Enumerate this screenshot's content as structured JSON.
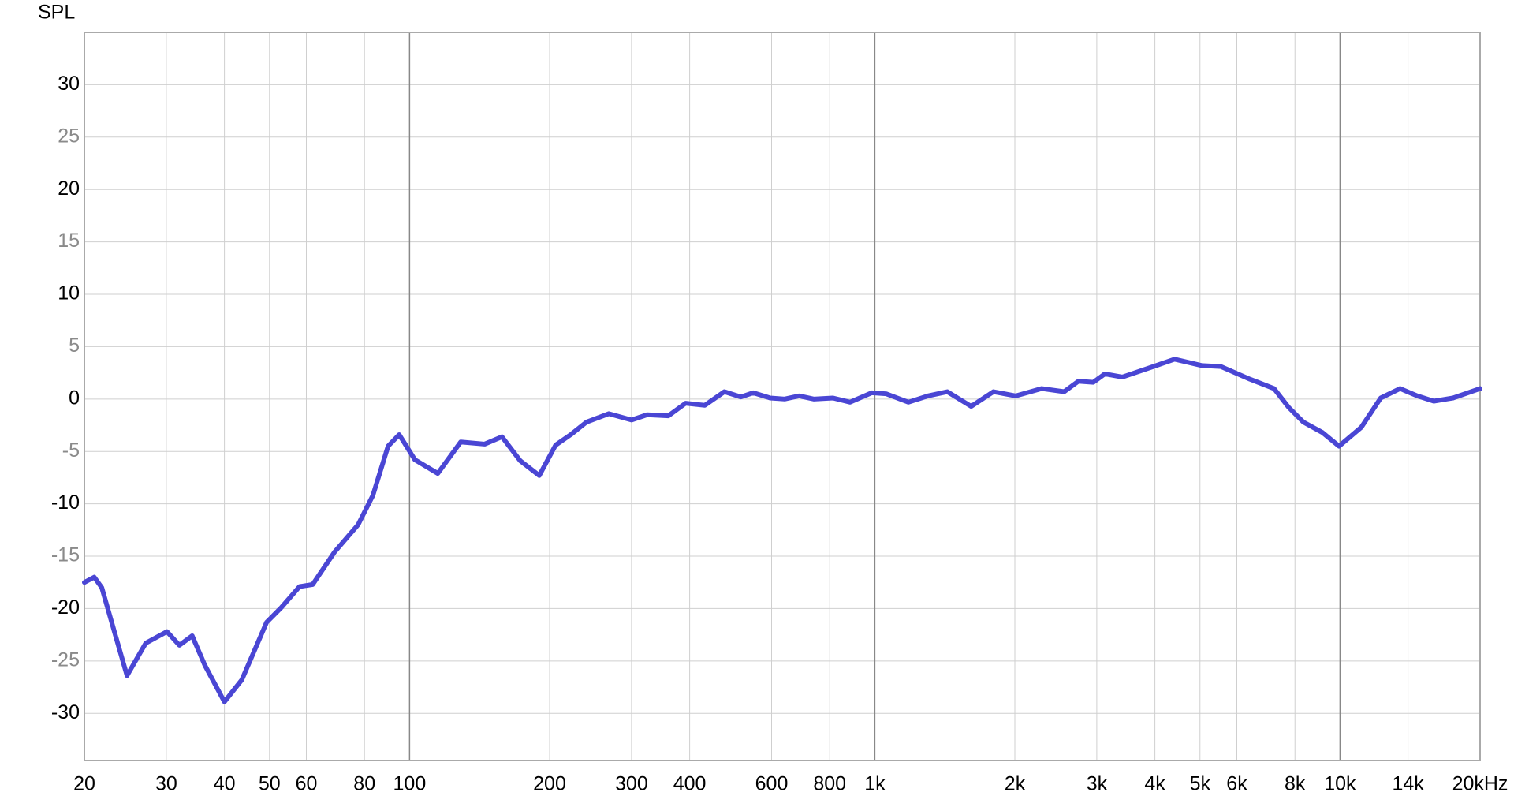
{
  "chart_data": {
    "type": "line",
    "y_label": "SPL",
    "xscale": "log",
    "xlim": [
      20,
      20000
    ],
    "ylim": [
      -34.5,
      35
    ],
    "xticks": [
      20,
      30,
      40,
      50,
      60,
      80,
      100,
      200,
      300,
      400,
      600,
      800,
      {
        "value": 1000,
        "label": "1k"
      },
      {
        "value": 2000,
        "label": "2k"
      },
      {
        "value": 3000,
        "label": "3k"
      },
      {
        "value": 4000,
        "label": "4k"
      },
      {
        "value": 5000,
        "label": "5k"
      },
      {
        "value": 6000,
        "label": "6k"
      },
      {
        "value": 8000,
        "label": "8k"
      },
      {
        "value": 10000,
        "label": "10k"
      },
      {
        "value": 14000,
        "label": "14k"
      },
      {
        "value": 20000,
        "label": "20kHz"
      }
    ],
    "yticks": [
      30,
      25,
      20,
      15,
      10,
      5,
      0,
      -5,
      -10,
      -15,
      -20,
      -25,
      -30
    ],
    "grid": true,
    "color": "#4a46d4",
    "x": [
      20,
      21,
      21.8,
      23.2,
      24.7,
      27.1,
      30.1,
      32,
      34.1,
      36.3,
      40,
      43.6,
      49.3,
      53,
      58,
      61.9,
      69,
      77.5,
      83.4,
      89.9,
      95,
      102.7,
      115,
      128.8,
      145,
      158,
      173,
      190,
      206,
      222,
      240,
      268,
      300,
      324,
      360,
      392,
      431,
      475,
      515,
      548,
      596,
      640,
      688,
      739,
      813,
      885,
      985,
      1058,
      1181,
      1301,
      1432,
      1611,
      1799,
      2007,
      2285,
      2552,
      2739,
      2949,
      3121,
      3405,
      3969,
      4409,
      5040,
      5545,
      6398,
      7214,
      7757,
      8339,
      9169,
      9951,
      11107,
      12230,
      13460,
      14667,
      15905,
      17490,
      20000
    ],
    "values": [
      -17.5,
      -17,
      -18,
      -22.2,
      -26.4,
      -23.3,
      -22.2,
      -23.5,
      -22.6,
      -25.4,
      -28.9,
      -26.8,
      -21.3,
      -19.9,
      -17.9,
      -17.7,
      -14.6,
      -12,
      -9.2,
      -4.5,
      -3.4,
      -5.8,
      -7.1,
      -4.1,
      -4.3,
      -3.6,
      -5.9,
      -7.3,
      -4.4,
      -3.4,
      -2.2,
      -1.4,
      -2,
      -1.5,
      -1.6,
      -0.4,
      -0.6,
      0.7,
      0.2,
      0.6,
      0.1,
      0,
      0.3,
      0,
      0.1,
      -0.3,
      0.6,
      0.5,
      -0.3,
      0.3,
      0.7,
      -0.7,
      0.7,
      0.3,
      1,
      0.7,
      1.7,
      1.6,
      2.4,
      2.1,
      3.1,
      3.8,
      3.2,
      3.1,
      1.9,
      1,
      -0.8,
      -2.2,
      -3.2,
      -4.5,
      -2.7,
      0.1,
      1,
      0.3,
      -0.2,
      0.1,
      1
    ]
  }
}
